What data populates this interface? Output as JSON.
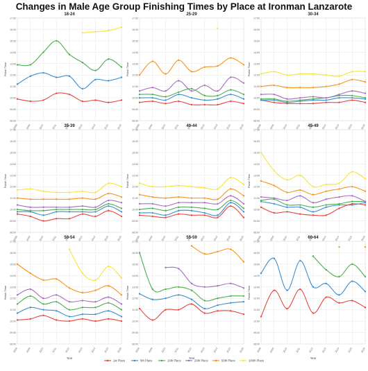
{
  "chart_data": {
    "type": "line",
    "title": "Changes in Male Age Group Finishing Times by Place at Ironman Lanzarote",
    "xlabel": "Year",
    "ylabel": "Finish Time",
    "x": [
      "2008",
      "2009",
      "2010",
      "2011",
      "2012",
      "2013",
      "2014",
      "2015",
      "2016"
    ],
    "y_ticks": [
      "08:00",
      "09:00",
      "10:00",
      "11:00",
      "12:00",
      "13:00",
      "14:00",
      "15:00",
      "16:00",
      "17:00"
    ],
    "ylim": [
      8,
      17
    ],
    "grid": true,
    "legend_position": "bottom",
    "series_names": [
      "1st Place",
      "5th Place",
      "10th Place",
      "20th Place",
      "50th Place",
      "100th Place"
    ],
    "colors": [
      "#e8453c",
      "#3b8ed0",
      "#4caf50",
      "#a66cc1",
      "#f7941d",
      "#f7e43a"
    ],
    "panels": [
      {
        "title": "18-24",
        "series": [
          {
            "values": [
              9.9,
              9.7,
              9.8,
              10.4,
              10.3,
              9.7,
              9.8,
              9.6,
              9.8
            ]
          },
          {
            "values": [
              11.2,
              11.9,
              12.2,
              11.8,
              11.9,
              10.8,
              11.6,
              11.5,
              11.8
            ]
          },
          {
            "values": [
              12.9,
              12.9,
              14.0,
              15.0,
              13.8,
              13.1,
              12.4,
              13.4,
              12.7
            ]
          },
          {
            "values": [
              null,
              null,
              null,
              null,
              null,
              null,
              null,
              null,
              null
            ]
          },
          {
            "values": [
              null,
              null,
              null,
              null,
              null,
              null,
              null,
              null,
              null
            ]
          },
          {
            "values": [
              null,
              null,
              null,
              null,
              null,
              15.7,
              15.8,
              15.9,
              16.2
            ]
          }
        ]
      },
      {
        "title": "25-29",
        "series": [
          {
            "values": [
              9.6,
              9.7,
              9.5,
              9.7,
              9.4,
              9.4,
              9.4,
              9.7,
              9.5
            ]
          },
          {
            "values": [
              10.0,
              10.0,
              9.8,
              10.3,
              10.0,
              9.8,
              9.9,
              10.3,
              9.9
            ]
          },
          {
            "values": [
              10.3,
              10.3,
              10.1,
              10.5,
              10.8,
              10.2,
              10.2,
              10.7,
              10.3
            ]
          },
          {
            "values": [
              10.6,
              10.9,
              10.6,
              11.5,
              10.6,
              11.1,
              10.6,
              11.8,
              11.3
            ]
          },
          {
            "values": [
              12.0,
              13.2,
              12.1,
              13.3,
              12.3,
              12.7,
              12.8,
              13.5,
              12.9
            ]
          },
          {
            "values": [
              null,
              null,
              null,
              null,
              null,
              null,
              16.1,
              null,
              null
            ]
          }
        ]
      },
      {
        "title": "30-34",
        "series": [
          {
            "values": [
              9.8,
              9.6,
              9.5,
              9.5,
              9.5,
              9.6,
              9.6,
              9.8,
              9.6
            ]
          },
          {
            "values": [
              9.8,
              9.8,
              9.6,
              9.7,
              9.8,
              9.8,
              10.0,
              10.0,
              9.9
            ]
          },
          {
            "values": [
              9.9,
              9.9,
              9.7,
              9.8,
              9.9,
              10.0,
              10.2,
              10.2,
              10.0
            ]
          },
          {
            "values": [
              10.3,
              10.3,
              9.9,
              10.0,
              10.1,
              10.0,
              10.3,
              10.6,
              10.4
            ]
          },
          {
            "values": [
              11.0,
              11.1,
              10.9,
              10.9,
              10.9,
              11.0,
              11.2,
              11.6,
              11.4
            ]
          },
          {
            "values": [
              12.1,
              12.3,
              12.0,
              12.1,
              12.1,
              12.0,
              11.9,
              12.3,
              12.3
            ]
          }
        ]
      },
      {
        "title": "35-39",
        "series": [
          {
            "values": [
              9.6,
              9.4,
              9.0,
              9.2,
              9.2,
              9.6,
              9.4,
              9.9,
              9.4
            ]
          },
          {
            "values": [
              9.8,
              9.8,
              9.5,
              9.8,
              9.8,
              9.8,
              9.8,
              10.3,
              9.8
            ]
          },
          {
            "values": [
              10.0,
              9.9,
              9.9,
              10.0,
              10.0,
              10.0,
              10.0,
              10.5,
              10.1
            ]
          },
          {
            "values": [
              10.4,
              10.2,
              10.2,
              10.2,
              10.2,
              10.3,
              10.2,
              10.8,
              10.6
            ]
          },
          {
            "values": [
              11.0,
              10.9,
              10.9,
              10.9,
              10.9,
              11.0,
              10.9,
              11.4,
              11.1
            ]
          },
          {
            "values": [
              11.7,
              11.8,
              11.6,
              11.5,
              11.5,
              11.6,
              11.5,
              12.3,
              12.0
            ]
          }
        ]
      },
      {
        "title": "40-44",
        "series": [
          {
            "values": [
              9.5,
              9.4,
              9.3,
              9.6,
              9.5,
              9.5,
              9.3,
              10.3,
              9.3
            ]
          },
          {
            "values": [
              9.7,
              9.7,
              9.5,
              9.9,
              9.9,
              9.7,
              9.5,
              10.6,
              9.8
            ]
          },
          {
            "values": [
              10.0,
              10.1,
              9.9,
              10.2,
              10.2,
              10.1,
              10.0,
              10.8,
              10.1
            ]
          },
          {
            "values": [
              10.5,
              10.5,
              10.3,
              10.6,
              10.6,
              10.6,
              10.5,
              11.2,
              10.5
            ]
          },
          {
            "values": [
              11.3,
              11.1,
              11.0,
              11.1,
              11.0,
              11.0,
              10.9,
              11.8,
              11.2
            ]
          },
          {
            "values": [
              12.3,
              12.0,
              12.0,
              12.1,
              12.0,
              11.9,
              11.8,
              12.8,
              12.2
            ]
          }
        ]
      },
      {
        "title": "45-49",
        "series": [
          {
            "values": [
              10.2,
              9.7,
              9.8,
              9.6,
              9.5,
              9.5,
              10.1,
              10.5,
              10.4
            ]
          },
          {
            "values": [
              10.7,
              10.5,
              10.2,
              10.2,
              9.8,
              10.2,
              10.4,
              10.4,
              10.6
            ]
          },
          {
            "values": [
              10.8,
              10.9,
              10.4,
              10.4,
              10.2,
              10.4,
              10.5,
              10.7,
              10.7
            ]
          },
          {
            "values": [
              11.1,
              11.0,
              10.8,
              11.2,
              10.6,
              10.9,
              11.1,
              11.2,
              10.7
            ]
          },
          {
            "values": [
              12.5,
              12.1,
              11.5,
              11.7,
              11.3,
              11.6,
              11.8,
              12.0,
              11.6
            ]
          },
          {
            "values": [
              15.0,
              13.4,
              12.6,
              13.0,
              12.0,
              12.2,
              12.3,
              13.3,
              12.7
            ]
          }
        ]
      },
      {
        "title": "50-54",
        "series": [
          {
            "values": [
              10.1,
              10.2,
              10.5,
              10.1,
              10.0,
              10.2,
              10.0,
              10.2,
              10.0
            ]
          },
          {
            "values": [
              10.7,
              11.2,
              11.0,
              10.9,
              10.4,
              10.6,
              10.6,
              10.9,
              10.4
            ]
          },
          {
            "values": [
              11.5,
              12.2,
              11.5,
              11.7,
              11.0,
              11.2,
              11.2,
              11.6,
              11.0
            ]
          },
          {
            "values": [
              12.3,
              12.8,
              12.0,
              12.3,
              11.7,
              11.8,
              11.7,
              12.1,
              11.5
            ]
          },
          {
            "values": [
              15.0,
              14.2,
              13.6,
              13.7,
              12.9,
              12.5,
              12.7,
              13.1,
              12.3
            ]
          },
          {
            "values": [
              null,
              null,
              null,
              null,
              16.3,
              14.2,
              13.6,
              14.8,
              13.8
            ]
          }
        ]
      },
      {
        "title": "55-59",
        "series": [
          {
            "values": [
              11.1,
              10.1,
              11.0,
              11.0,
              11.5,
              10.7,
              10.9,
              10.9,
              10.6
            ]
          },
          {
            "values": [
              12.4,
              11.9,
              12.0,
              12.3,
              11.9,
              11.1,
              11.4,
              11.6,
              11.7
            ]
          },
          {
            "values": [
              16.0,
              12.8,
              12.8,
              13.0,
              12.7,
              11.8,
              12.0,
              12.2,
              12.2
            ]
          },
          {
            "values": [
              null,
              null,
              14.7,
              14.6,
              13.3,
              13.0,
              13.1,
              13.3,
              12.9
            ]
          },
          {
            "values": [
              null,
              null,
              null,
              null,
              16.6,
              15.9,
              16.1,
              16.3,
              15.2
            ]
          },
          {
            "values": [
              null,
              null,
              null,
              null,
              null,
              null,
              null,
              null,
              null
            ]
          }
        ]
      },
      {
        "title": "60-64",
        "series": [
          {
            "values": [
              10.4,
              12.7,
              11.1,
              12.8,
              10.7,
              12.1,
              11.6,
              11.8,
              11.2
            ]
          },
          {
            "values": [
              14.2,
              15.5,
              12.7,
              15.3,
              13.0,
              13.3,
              12.3,
              13.5,
              12.6
            ]
          },
          {
            "values": [
              null,
              null,
              null,
              null,
              15.7,
              14.5,
              13.9,
              15.0,
              13.9
            ]
          },
          {
            "values": [
              null,
              null,
              null,
              null,
              null,
              null,
              null,
              null,
              null
            ]
          },
          {
            "values": [
              null,
              null,
              null,
              null,
              null,
              null,
              16.5,
              null,
              16.5
            ]
          },
          {
            "values": [
              null,
              null,
              null,
              null,
              null,
              null,
              null,
              null,
              null
            ]
          }
        ]
      }
    ]
  }
}
